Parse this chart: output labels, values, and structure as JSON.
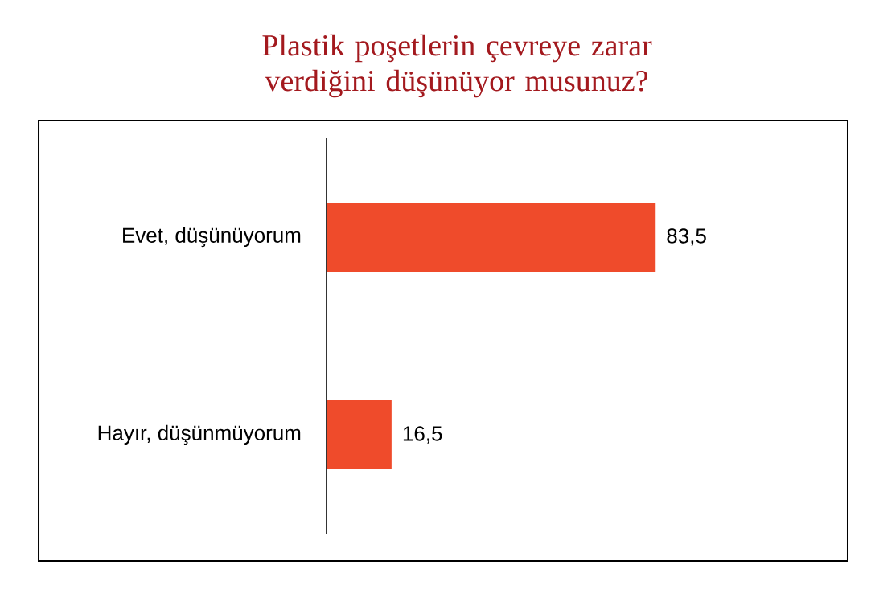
{
  "chart_data": {
    "type": "bar",
    "orientation": "horizontal",
    "title": "Plastik poşetlerin çevreye zarar verdiğini düşünüyor musunuz?",
    "categories": [
      "Evet, düşünüyorum",
      "Hayır, düşünmüyorum"
    ],
    "values": [
      83.5,
      16.5
    ],
    "value_labels": [
      "83,5",
      "16,5"
    ],
    "color": "#ef4b2b"
  }
}
